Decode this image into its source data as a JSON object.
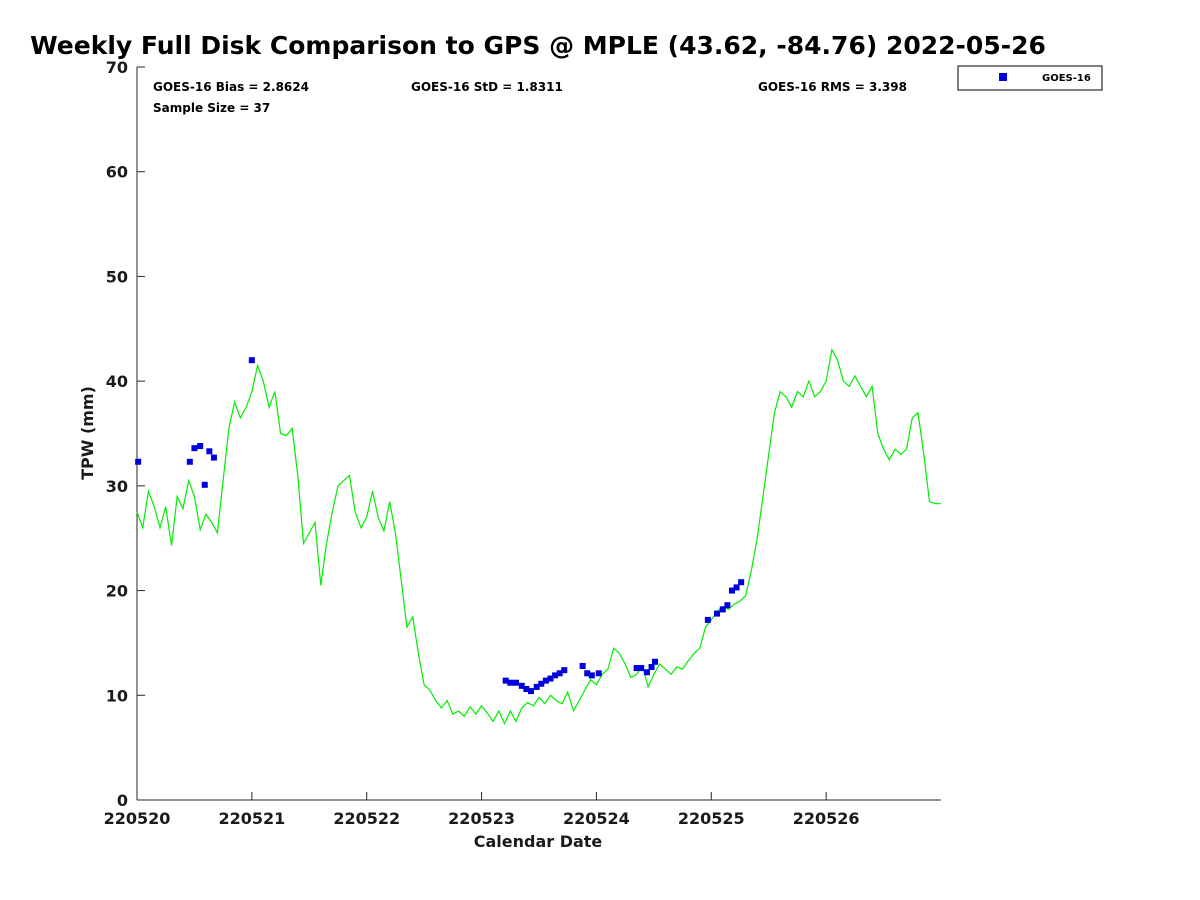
{
  "chart_data": {
    "type": "scatter+line",
    "title": "Weekly Full Disk Comparison to GPS @ MPLE (43.62, -84.76) 2022-05-26",
    "xlabel": "Calendar Date",
    "ylabel": "TPW (mm)",
    "ylim": [
      0,
      70
    ],
    "yticks": [
      0,
      10,
      20,
      30,
      40,
      50,
      60,
      70
    ],
    "xlim": [
      0,
      7
    ],
    "xtick_values": [
      0,
      1,
      2,
      3,
      4,
      5,
      6
    ],
    "xtick_labels": [
      "220520",
      "220521",
      "220522",
      "220523",
      "220524",
      "220525",
      "220526"
    ],
    "stats": {
      "bias": "GOES-16 Bias = 2.8624",
      "std": "GOES-16 StD = 1.8311",
      "rms": "GOES-16 RMS = 3.398",
      "sample": "Sample Size = 37"
    },
    "legend": {
      "placement": "top-right outside",
      "entries": [
        "GOES-16"
      ]
    },
    "colors": {
      "goes": "#0000dd",
      "gps": "#00ee00"
    },
    "series": [
      {
        "name": "GOES-16",
        "kind": "scatter",
        "x": [
          0.01,
          0.46,
          0.5,
          0.55,
          0.59,
          0.63,
          0.67,
          1.0,
          3.21,
          3.25,
          3.3,
          3.35,
          3.39,
          3.43,
          3.48,
          3.52,
          3.56,
          3.6,
          3.64,
          3.68,
          3.72,
          3.88,
          3.92,
          3.96,
          4.02,
          4.35,
          4.39,
          4.44,
          4.48,
          4.51,
          4.97,
          5.05,
          5.1,
          5.14,
          5.18,
          5.22,
          5.26
        ],
        "y": [
          32.3,
          32.3,
          33.6,
          33.8,
          30.1,
          33.3,
          32.7,
          42.0,
          11.4,
          11.2,
          11.2,
          10.9,
          10.6,
          10.4,
          10.8,
          11.1,
          11.4,
          11.6,
          11.9,
          12.1,
          12.4,
          12.8,
          12.1,
          11.9,
          12.1,
          12.6,
          12.6,
          12.2,
          12.7,
          13.2,
          17.2,
          17.8,
          18.2,
          18.6,
          20.0,
          20.3,
          20.8
        ]
      },
      {
        "name": "GPS",
        "kind": "line",
        "x": [
          0.0,
          0.05,
          0.1,
          0.15,
          0.2,
          0.25,
          0.3,
          0.35,
          0.4,
          0.45,
          0.5,
          0.55,
          0.6,
          0.65,
          0.7,
          0.75,
          0.8,
          0.85,
          0.9,
          0.95,
          1.0,
          1.05,
          1.1,
          1.15,
          1.2,
          1.25,
          1.3,
          1.35,
          1.4,
          1.45,
          1.5,
          1.55,
          1.6,
          1.65,
          1.7,
          1.75,
          1.8,
          1.85,
          1.9,
          1.95,
          2.0,
          2.05,
          2.1,
          2.15,
          2.2,
          2.25,
          2.3,
          2.35,
          2.4,
          2.45,
          2.5,
          2.55,
          2.6,
          2.65,
          2.7,
          2.75,
          2.8,
          2.85,
          2.9,
          2.95,
          3.0,
          3.05,
          3.1,
          3.15,
          3.2,
          3.25,
          3.3,
          3.35,
          3.4,
          3.45,
          3.5,
          3.55,
          3.6,
          3.65,
          3.7,
          3.75,
          3.8,
          3.85,
          3.9,
          3.95,
          4.0,
          4.05,
          4.1,
          4.15,
          4.2,
          4.25,
          4.3,
          4.35,
          4.4,
          4.45,
          4.5,
          4.55,
          4.6,
          4.65,
          4.7,
          4.75,
          4.8,
          4.85,
          4.9,
          4.95,
          5.0,
          5.05,
          5.1,
          5.15,
          5.2,
          5.25,
          5.3,
          5.35,
          5.4,
          5.45,
          5.5,
          5.55,
          5.6,
          5.65,
          5.7,
          5.75,
          5.8,
          5.85,
          5.9,
          5.95,
          6.0,
          6.05,
          6.1,
          6.15,
          6.2,
          6.25,
          6.3,
          6.35,
          6.4,
          6.45,
          6.5,
          6.55,
          6.6,
          6.65,
          6.7,
          6.75,
          6.8,
          6.85,
          6.9,
          6.95,
          7.0
        ],
        "y": [
          27.5,
          26.0,
          29.5,
          28.0,
          26.0,
          28.0,
          24.3,
          29.0,
          27.8,
          30.5,
          29.0,
          25.8,
          27.3,
          26.5,
          25.5,
          30.5,
          35.5,
          38.0,
          36.5,
          37.5,
          39.0,
          41.5,
          40.0,
          37.5,
          39.0,
          35.0,
          34.8,
          35.5,
          31.0,
          24.5,
          25.5,
          26.5,
          20.5,
          24.5,
          27.5,
          30.0,
          30.5,
          31.0,
          27.5,
          26.0,
          27.0,
          29.5,
          27.0,
          25.7,
          28.5,
          25.5,
          21.0,
          16.5,
          17.5,
          14.0,
          11.0,
          10.5,
          9.5,
          8.8,
          9.5,
          8.2,
          8.5,
          8.0,
          8.9,
          8.2,
          9.0,
          8.3,
          7.5,
          8.5,
          7.3,
          8.5,
          7.5,
          8.8,
          9.3,
          9.0,
          9.8,
          9.2,
          10.0,
          9.5,
          9.2,
          10.3,
          8.5,
          9.5,
          10.5,
          11.5,
          11.0,
          12.0,
          12.5,
          14.5,
          14.0,
          13.0,
          11.7,
          12.0,
          12.8,
          10.8,
          12.0,
          13.0,
          12.5,
          12.0,
          12.7,
          12.5,
          13.3,
          14.0,
          14.5,
          16.5,
          17.2,
          18.0,
          18.5,
          18.2,
          18.7,
          19.0,
          19.5,
          22.0,
          25.0,
          29.0,
          33.0,
          37.0,
          39.0,
          38.5,
          37.5,
          39.0,
          38.5,
          40.0,
          38.5,
          39.0,
          40.0,
          43.0,
          42.0,
          40.0,
          39.5,
          40.5,
          39.5,
          38.5,
          39.5,
          35.0,
          33.5,
          32.5,
          33.5,
          33.0,
          33.5,
          36.5,
          37.0,
          33.0,
          28.5,
          28.3,
          28.3
        ]
      }
    ]
  }
}
